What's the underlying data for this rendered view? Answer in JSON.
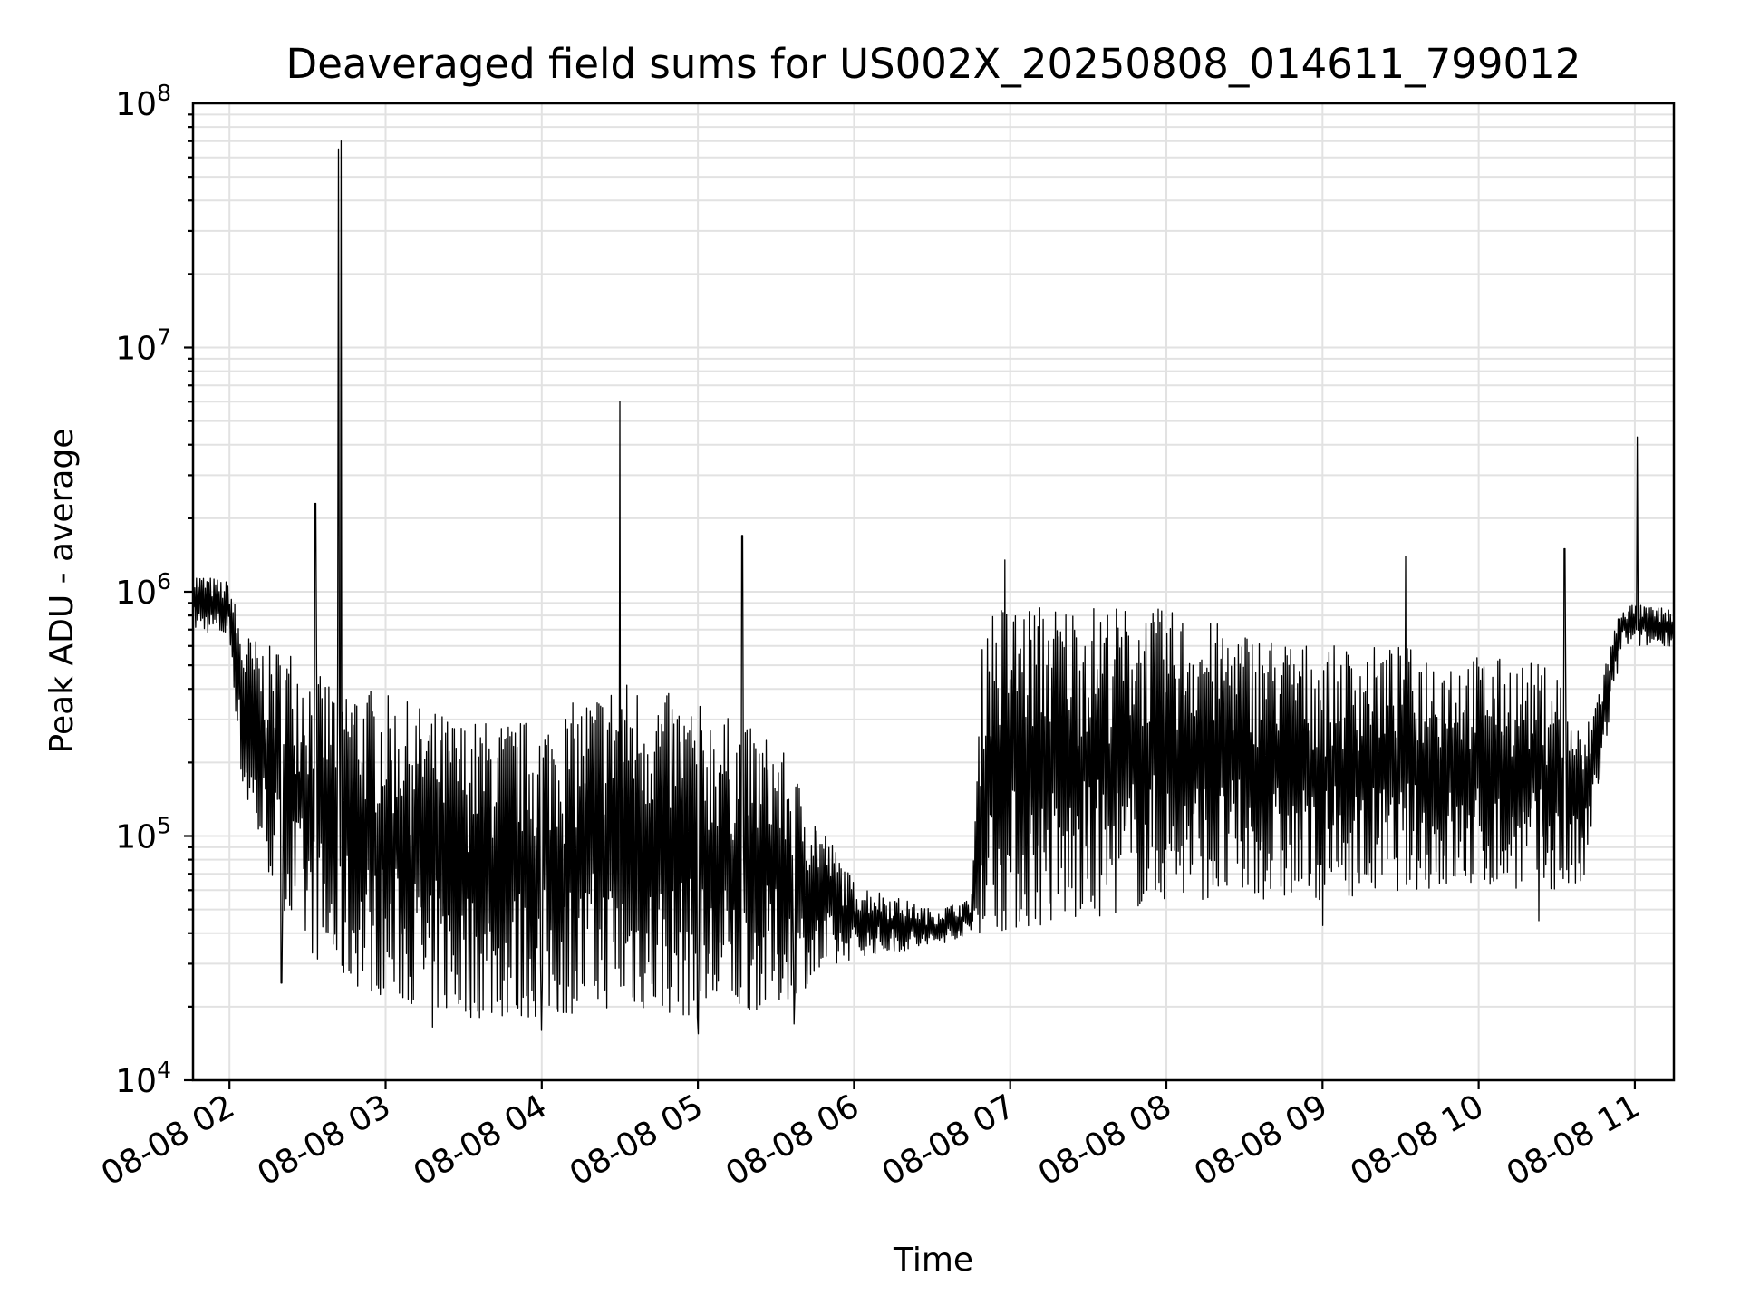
{
  "chart_data": {
    "type": "line",
    "title": "Deaveraged field sums for US002X_20250808_014611_799012",
    "xlabel": "Time",
    "ylabel": "Peak ADU - average",
    "yscale": "log",
    "ylim": [
      10000,
      100000000
    ],
    "xlim": [
      "2025-08-08 01:46",
      "2025-08-08 11:15"
    ],
    "grid": true,
    "x_tick_labels": [
      "08-08 02",
      "08-08 03",
      "08-08 04",
      "08-08 05",
      "08-08 06",
      "08-08 07",
      "08-08 08",
      "08-08 09",
      "08-08 10",
      "08-08 11"
    ],
    "y_ticks": [
      {
        "value": 10000,
        "base": "10",
        "exp": "4"
      },
      {
        "value": 100000,
        "base": "10",
        "exp": "5"
      },
      {
        "value": 1000000,
        "base": "10",
        "exp": "6"
      },
      {
        "value": 10000000,
        "base": "10",
        "exp": "7"
      },
      {
        "value": 100000000,
        "base": "10",
        "exp": "8"
      }
    ],
    "line_color": "#000000",
    "series": [
      {
        "time": [
          "2025-08-08 01:46",
          "2025-08-08 02:00",
          "2025-08-08 02:05",
          "2025-08-08 02:15",
          "2025-08-08 02:25",
          "2025-08-08 02:35",
          "2025-08-08 02:45",
          "2025-08-08 03:00",
          "2025-08-08 03:30",
          "2025-08-08 04:00",
          "2025-08-08 04:30",
          "2025-08-08 05:00",
          "2025-08-08 05:30",
          "2025-08-08 06:00",
          "2025-08-08 06:30",
          "2025-08-08 06:45",
          "2025-08-08 06:50",
          "2025-08-08 07:30",
          "2025-08-08 08:00",
          "2025-08-08 08:30",
          "2025-08-08 09:00",
          "2025-08-08 09:30",
          "2025-08-08 10:00",
          "2025-08-08 10:30",
          "2025-08-08 10:40",
          "2025-08-08 10:55",
          "2025-08-08 11:15"
        ],
        "upper": [
          1200000,
          1100000,
          700000,
          600000,
          600000,
          450000,
          450000,
          380000,
          300000,
          300000,
          450000,
          350000,
          250000,
          65000,
          50000,
          55000,
          900000,
          900000,
          850000,
          700000,
          600000,
          600000,
          550000,
          500000,
          250000,
          900000,
          850000
        ],
        "lower": [
          700000,
          650000,
          150000,
          70000,
          40000,
          30000,
          25000,
          22000,
          18000,
          18000,
          20000,
          18000,
          20000,
          32000,
          35000,
          40000,
          40000,
          45000,
          55000,
          55000,
          55000,
          60000,
          62000,
          60000,
          60000,
          600000,
          600000
        ]
      }
    ],
    "spikes": [
      {
        "time": "2025-08-08 02:33",
        "value": 2300000
      },
      {
        "time": "2025-08-08 02:42",
        "value": 65000000
      },
      {
        "time": "2025-08-08 02:43",
        "value": 70000000
      },
      {
        "time": "2025-08-08 04:30",
        "value": 6000000
      },
      {
        "time": "2025-08-08 05:17",
        "value": 1700000
      },
      {
        "time": "2025-08-08 06:58",
        "value": 1350000
      },
      {
        "time": "2025-08-08 09:32",
        "value": 1400000
      },
      {
        "time": "2025-08-08 10:33",
        "value": 1500000
      },
      {
        "time": "2025-08-08 11:01",
        "value": 4300000
      }
    ],
    "dips": [
      {
        "time": "2025-08-08 02:20",
        "value": 25000
      },
      {
        "time": "2025-08-08 03:18",
        "value": 16500
      },
      {
        "time": "2025-08-08 04:00",
        "value": 16000
      },
      {
        "time": "2025-08-08 05:00",
        "value": 15500
      },
      {
        "time": "2025-08-08 05:37",
        "value": 17000
      },
      {
        "time": "2025-08-08 09:00",
        "value": 43000
      },
      {
        "time": "2025-08-08 10:23",
        "value": 45000
      }
    ]
  }
}
